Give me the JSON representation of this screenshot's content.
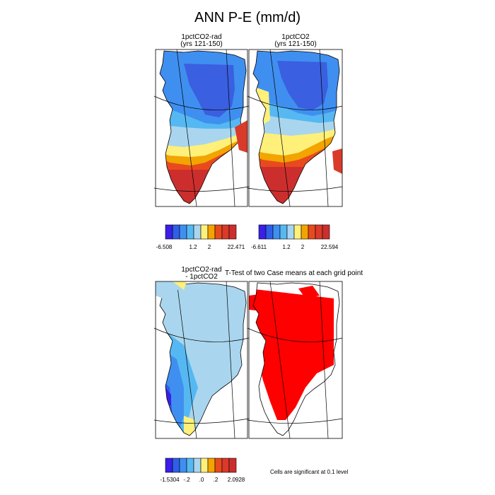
{
  "title": "ANN P-E (mm/d)",
  "panels": {
    "top_left": {
      "title_line1": "1pctCO2-rad",
      "title_line2": "(yrs 121-150)"
    },
    "top_right": {
      "title_line1": "1pctCO2",
      "title_line2": "(yrs 121-150)"
    },
    "bottom_left": {
      "title_line1": "1pctCO2-rad",
      "title_line2": "- 1pctCO2"
    },
    "bottom_right": {
      "title": "T-Test of two Case means at each grid point",
      "footnote": "Cells are significant at 0.1 level",
      "significant_color": "#ff0000"
    }
  },
  "colorbars": {
    "cb1": {
      "labels": [
        "-6.508",
        "1.2",
        "2",
        "22.471"
      ],
      "colors": [
        "#3a1fe6",
        "#2f5fe8",
        "#3f8ff0",
        "#56b8f2",
        "#a9d6ee",
        "#fff07a",
        "#f2a400",
        "#e84a1e",
        "#d93a2a",
        "#cc2e2e"
      ]
    },
    "cb2": {
      "labels": [
        "-6.611",
        "1.2",
        "2",
        "22.594"
      ],
      "colors": [
        "#3a1fe6",
        "#2f5fe8",
        "#3f8ff0",
        "#56b8f2",
        "#a9d6ee",
        "#fff07a",
        "#f2a400",
        "#e84a1e",
        "#d93a2a",
        "#cc2e2e"
      ]
    },
    "cb3": {
      "labels": [
        "-1.5304",
        "-.2",
        ".0",
        ".2",
        "2.0928"
      ],
      "colors": [
        "#3a1fe6",
        "#2f5fe8",
        "#3f8ff0",
        "#56b8f2",
        "#a9d6ee",
        "#fff07a",
        "#f2a400",
        "#e84a1e",
        "#d93a2a",
        "#cc2e2e"
      ]
    }
  }
}
